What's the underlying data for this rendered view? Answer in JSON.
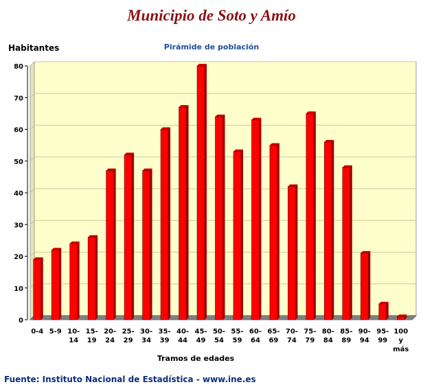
{
  "title": "Municipio de Soto y Amío",
  "subtitle": "Pirámide de población",
  "source": "Fuente: Instituto Nacional de Estadística - www.ine.es",
  "colors": {
    "title": "#8b0f12",
    "subtitle": "#1d4f9a",
    "plot_bg": "#ffffcc",
    "bar_front": "#ff0000",
    "bar_side": "#a00000",
    "bar_top": "#d00000",
    "floor": "#808080",
    "grid": "#c8c8a0"
  },
  "chart_data": {
    "type": "bar",
    "ylabel": "Habitantes",
    "xlabel": "Tramos de edades",
    "ylim": [
      0,
      80
    ],
    "yticks": [
      "0",
      "10",
      "20",
      "30",
      "40",
      "50",
      "60",
      "70",
      "80"
    ],
    "grid": true,
    "categories": [
      [
        "0-4"
      ],
      [
        "5-9"
      ],
      [
        "10-",
        "14"
      ],
      [
        "15-",
        "19"
      ],
      [
        "20-",
        "24"
      ],
      [
        "25-",
        "29"
      ],
      [
        "30-",
        "34"
      ],
      [
        "35-",
        "39"
      ],
      [
        "40-",
        "44"
      ],
      [
        "45-",
        "49"
      ],
      [
        "50-",
        "54"
      ],
      [
        "55-",
        "59"
      ],
      [
        "60-",
        "64"
      ],
      [
        "65-",
        "69"
      ],
      [
        "70-",
        "74"
      ],
      [
        "75-",
        "79"
      ],
      [
        "80-",
        "84"
      ],
      [
        "85-",
        "89"
      ],
      [
        "90-",
        "94"
      ],
      [
        "95-",
        "99"
      ],
      [
        "100",
        "y",
        "más"
      ]
    ],
    "values": [
      19,
      22,
      24,
      26,
      47,
      52,
      47,
      60,
      67,
      80,
      64,
      53,
      63,
      55,
      42,
      65,
      56,
      48,
      21,
      5,
      1
    ]
  }
}
